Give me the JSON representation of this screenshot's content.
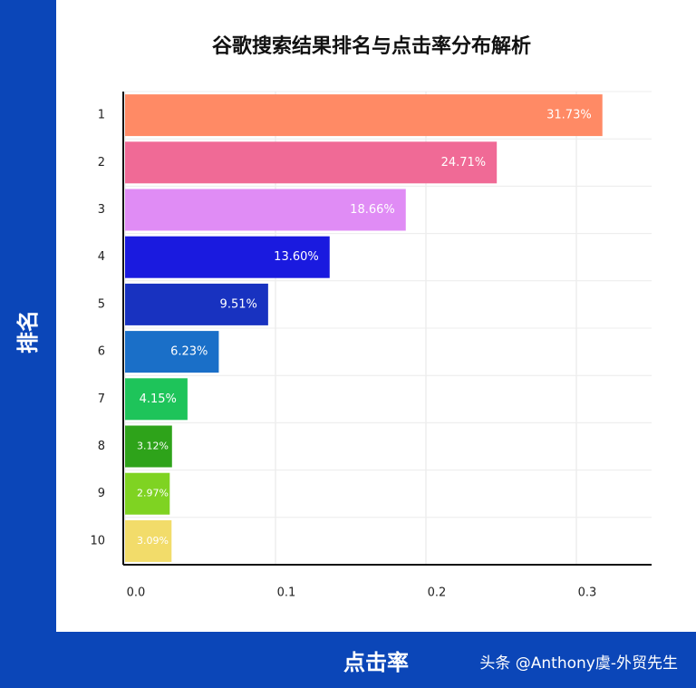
{
  "chart_data": {
    "type": "barh",
    "title": "谷歌搜索结果排名与点击率分布解析",
    "y_label": "排名",
    "x_label": "点击率",
    "watermark": "头条 @Anthony虞-外贸先生",
    "categories": [
      "1",
      "2",
      "3",
      "4",
      "5",
      "6",
      "7",
      "8",
      "9",
      "10"
    ],
    "values": [
      0.3173,
      0.2471,
      0.1866,
      0.136,
      0.0951,
      0.0623,
      0.0415,
      0.0312,
      0.0297,
      0.0309
    ],
    "value_labels": [
      "31.73%",
      "24.71%",
      "18.66%",
      "13.60%",
      "9.51%",
      "6.23%",
      "4.15%",
      "3.12%",
      "2.97%",
      "3.09%"
    ],
    "colors": [
      "#ff8a65",
      "#f06a96",
      "#e08cf5",
      "#1a1adf",
      "#1832c0",
      "#1a6fc8",
      "#1ec45a",
      "#2ea31a",
      "#7fd322",
      "#f2dc6a"
    ],
    "xlim": [
      0,
      0.35
    ],
    "xticks": [
      {
        "value": 0,
        "label": "0.0"
      },
      0.1,
      0.2,
      0.3
    ],
    "grid": true
  }
}
